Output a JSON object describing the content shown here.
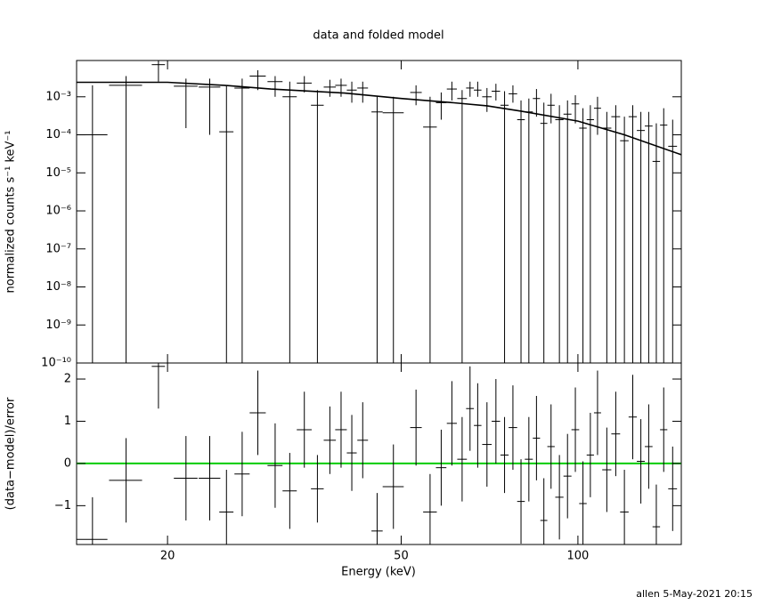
{
  "title": "data and folded model",
  "footer": "allen  5-May-2021 20:15",
  "chart_data": [
    {
      "type": "errorbar",
      "xlog": true,
      "ylog": true,
      "color": "#000000",
      "ylabel": "normalized counts s⁻¹ keV⁻¹",
      "xlim": [
        14,
        150
      ],
      "ylim": [
        1e-10,
        0.009
      ],
      "yticks": [
        {
          "value": 0.001,
          "label": "10⁻³"
        },
        {
          "value": 0.0001,
          "label": "10⁻⁴"
        },
        {
          "value": 1e-05,
          "label": "10⁻⁵"
        },
        {
          "value": 1e-06,
          "label": "10⁻⁶"
        },
        {
          "value": 1e-07,
          "label": "10⁻⁷"
        },
        {
          "value": 1e-08,
          "label": "10⁻⁸"
        },
        {
          "value": 1e-09,
          "label": "10⁻⁹"
        },
        {
          "value": 1e-10,
          "label": "10⁻¹⁰"
        }
      ],
      "x": [
        14.9,
        17.0,
        19.3,
        21.5,
        23.6,
        25.2,
        26.8,
        28.5,
        30.5,
        32.3,
        34.2,
        36.0,
        37.8,
        39.5,
        41.2,
        43.0,
        45.5,
        48.5,
        53,
        56,
        58.5,
        61,
        63.5,
        65.5,
        67.5,
        70,
        72.5,
        75,
        77.5,
        80,
        82.5,
        85,
        87.5,
        90,
        93,
        96,
        99,
        102,
        105,
        108,
        112,
        116,
        120,
        124,
        128,
        132,
        136,
        140,
        145
      ],
      "xerr": [
        0.9,
        1.1,
        0.5,
        1.0,
        1.0,
        0.7,
        0.8,
        0.9,
        0.9,
        0.9,
        1.0,
        0.9,
        0.9,
        0.9,
        0.8,
        0.9,
        1.0,
        2.0,
        1.2,
        1.5,
        1.2,
        1.2,
        1.2,
        1.0,
        1.0,
        1.3,
        1.2,
        1.2,
        1.3,
        1.2,
        1.3,
        1.2,
        1.2,
        1.3,
        1.5,
        1.5,
        1.5,
        1.5,
        1.5,
        1.5,
        2,
        2,
        2,
        2,
        2,
        2,
        2,
        2,
        2.5
      ],
      "values": [
        0.0001,
        0.002,
        0.007,
        0.0019,
        0.0018,
        0.00012,
        0.0017,
        0.0035,
        0.0025,
        0.001,
        0.0023,
        0.0006,
        0.0018,
        0.002,
        0.0015,
        0.0017,
        0.0004,
        0.00038,
        0.0013,
        0.00016,
        0.0007,
        0.0016,
        0.0009,
        0.0017,
        0.0015,
        0.001,
        0.0014,
        0.0006,
        0.0012,
        0.00025,
        0.0004,
        0.0009,
        0.0002,
        0.0006,
        0.00025,
        0.00035,
        0.00065,
        0.00015,
        0.00025,
        0.0005,
        0.00015,
        0.0003,
        7e-05,
        0.0003,
        0.00013,
        0.00017,
        2e-05,
        0.00018,
        5e-05
      ],
      "ylow": [
        1e-10,
        1e-10,
        0.0025,
        0.00015,
        0.0001,
        1e-10,
        1e-10,
        0.0015,
        0.001,
        1e-10,
        0.0013,
        1e-10,
        0.001,
        0.001,
        0.0007,
        0.0007,
        1e-10,
        1e-10,
        0.0006,
        1e-10,
        0.00025,
        0.0008,
        1e-10,
        0.001,
        0.001,
        0.0004,
        0.0008,
        1e-10,
        0.0007,
        1e-10,
        1e-10,
        0.0003,
        1e-10,
        0.0002,
        1e-10,
        1e-10,
        0.0002,
        1e-10,
        1e-10,
        0.0001,
        1e-10,
        1e-10,
        1e-10,
        1e-10,
        1e-10,
        1e-10,
        1e-10,
        1e-10,
        1e-10
      ],
      "yhigh": [
        0.002,
        0.0035,
        0.009,
        0.003,
        0.003,
        0.002,
        0.003,
        0.005,
        0.0035,
        0.0025,
        0.0035,
        0.0015,
        0.0028,
        0.003,
        0.0025,
        0.0025,
        0.001,
        0.001,
        0.002,
        0.001,
        0.0013,
        0.0025,
        0.0015,
        0.0025,
        0.0025,
        0.0017,
        0.0022,
        0.0014,
        0.002,
        0.0008,
        0.0009,
        0.0016,
        0.0007,
        0.0012,
        0.0006,
        0.0008,
        0.0011,
        0.0005,
        0.0006,
        0.001,
        0.0004,
        0.0006,
        0.0003,
        0.0006,
        0.0004,
        0.0004,
        0.0002,
        0.0005,
        0.00025
      ],
      "model": {
        "color": "#000000",
        "x": [
          14,
          17,
          20,
          25,
          30,
          40,
          50,
          60,
          70,
          80,
          100,
          120,
          150
        ],
        "values": [
          0.0024,
          0.0024,
          0.0024,
          0.002,
          0.0016,
          0.00125,
          0.0009,
          0.00072,
          0.00058,
          0.00042,
          0.00023,
          0.0001,
          3e-05
        ]
      }
    },
    {
      "type": "errorbar",
      "xlog": true,
      "color": "#000000",
      "xlabel": "Energy (keV)",
      "ylabel": "(data−model)/error",
      "xlim": [
        14,
        150
      ],
      "ylim": [
        -1.92,
        2.38
      ],
      "xticks": [
        20,
        50,
        100
      ],
      "yticks": [
        {
          "value": -1,
          "label": "−1"
        },
        0,
        1,
        2
      ],
      "reference": {
        "value": 0,
        "color": "#00cc00"
      },
      "x": [
        14.9,
        17.0,
        19.3,
        21.5,
        23.6,
        25.2,
        26.8,
        28.5,
        30.5,
        32.3,
        34.2,
        36.0,
        37.8,
        39.5,
        41.2,
        43.0,
        45.5,
        48.5,
        53,
        56,
        58.5,
        61,
        63.5,
        65.5,
        67.5,
        70,
        72.5,
        75,
        77.5,
        80,
        82.5,
        85,
        87.5,
        90,
        93,
        96,
        99,
        102,
        105,
        108,
        112,
        116,
        120,
        124,
        128,
        132,
        136,
        140,
        145
      ],
      "xerr": [
        0.9,
        1.1,
        0.5,
        1.0,
        1.0,
        0.7,
        0.8,
        0.9,
        0.9,
        0.9,
        1.0,
        0.9,
        0.9,
        0.9,
        0.8,
        0.9,
        1.0,
        2.0,
        1.2,
        1.5,
        1.2,
        1.2,
        1.2,
        1.0,
        1.0,
        1.3,
        1.2,
        1.2,
        1.3,
        1.2,
        1.3,
        1.2,
        1.2,
        1.3,
        1.5,
        1.5,
        1.5,
        1.5,
        1.5,
        1.5,
        2,
        2,
        2,
        2,
        2,
        2,
        2,
        2,
        2.5
      ],
      "values": [
        -1.8,
        -0.4,
        2.3,
        -0.35,
        -0.35,
        -1.15,
        -0.25,
        1.2,
        -0.05,
        -0.65,
        0.8,
        -0.6,
        0.55,
        0.8,
        0.25,
        0.55,
        -1.6,
        -0.55,
        0.85,
        -1.15,
        -0.1,
        0.95,
        0.1,
        1.3,
        0.9,
        0.45,
        1.0,
        0.2,
        0.85,
        -0.9,
        0.1,
        0.6,
        -1.35,
        0.4,
        -0.8,
        -0.3,
        0.8,
        -0.95,
        0.2,
        1.2,
        -0.15,
        0.7,
        -1.15,
        1.1,
        0.05,
        0.4,
        -1.5,
        0.8,
        -0.6
      ],
      "errors": [
        1.0,
        1.0,
        1.0,
        1.0,
        1.0,
        1.0,
        1.0,
        1.0,
        1.0,
        0.9,
        0.9,
        0.8,
        0.8,
        0.9,
        0.9,
        0.9,
        0.9,
        1.0,
        0.9,
        0.9,
        0.9,
        1.0,
        1.0,
        1.0,
        1.0,
        1.0,
        1.0,
        0.9,
        1.0,
        1.0,
        1.0,
        1.0,
        1.0,
        1.0,
        1.0,
        1.0,
        1.0,
        1.0,
        1.0,
        1.0,
        1.0,
        1.0,
        1.0,
        1.0,
        1.0,
        1.0,
        1.0,
        1.0,
        1.0
      ]
    }
  ]
}
